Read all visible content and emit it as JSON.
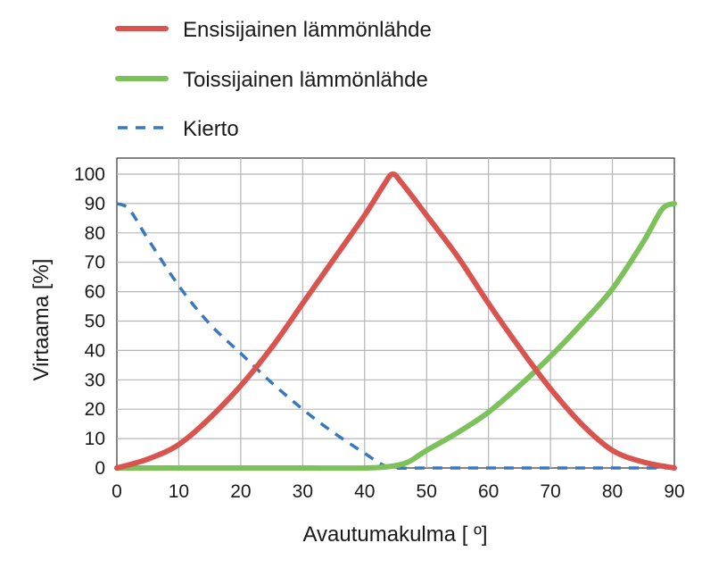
{
  "chart_data": {
    "type": "line",
    "xlabel": "Avautumakulma [ º]",
    "ylabel": "Virtaama [%]",
    "xlim": [
      0,
      90
    ],
    "ylim": [
      0,
      100
    ],
    "x_ticks": [
      0,
      10,
      20,
      30,
      40,
      50,
      60,
      70,
      80,
      90
    ],
    "y_ticks": [
      0,
      10,
      20,
      30,
      40,
      50,
      60,
      70,
      80,
      90,
      100
    ],
    "grid": true,
    "legend_position": "top",
    "series": [
      {
        "name": "Ensisijainen lämmönlähde",
        "color": "#d9534f",
        "style": "solid",
        "points": [
          [
            0,
            0
          ],
          [
            5,
            3
          ],
          [
            10,
            8
          ],
          [
            15,
            17
          ],
          [
            20,
            28
          ],
          [
            25,
            41
          ],
          [
            30,
            56
          ],
          [
            35,
            71
          ],
          [
            40,
            86
          ],
          [
            43,
            96
          ],
          [
            44.5,
            100
          ],
          [
            46,
            97
          ],
          [
            50,
            86
          ],
          [
            55,
            72
          ],
          [
            60,
            56
          ],
          [
            65,
            41
          ],
          [
            70,
            27
          ],
          [
            75,
            15
          ],
          [
            80,
            6
          ],
          [
            85,
            2
          ],
          [
            90,
            0
          ]
        ]
      },
      {
        "name": "Toissijainen lämmönlähde",
        "color": "#7dc15b",
        "style": "solid",
        "points": [
          [
            0,
            0
          ],
          [
            10,
            0
          ],
          [
            20,
            0
          ],
          [
            30,
            0
          ],
          [
            40,
            0
          ],
          [
            44,
            0.5
          ],
          [
            47,
            2
          ],
          [
            50,
            6
          ],
          [
            55,
            12
          ],
          [
            60,
            19
          ],
          [
            65,
            28
          ],
          [
            70,
            38
          ],
          [
            75,
            49
          ],
          [
            80,
            61
          ],
          [
            85,
            77
          ],
          [
            88,
            88
          ],
          [
            90,
            90
          ]
        ]
      },
      {
        "name": "Kierto",
        "color": "#3a78bd",
        "style": "dashed",
        "points": [
          [
            0,
            90
          ],
          [
            2,
            88
          ],
          [
            5,
            78
          ],
          [
            10,
            62
          ],
          [
            15,
            49
          ],
          [
            20,
            39
          ],
          [
            25,
            29
          ],
          [
            30,
            20
          ],
          [
            35,
            12
          ],
          [
            40,
            5
          ],
          [
            43,
            1
          ],
          [
            45,
            0
          ],
          [
            50,
            0
          ],
          [
            60,
            0
          ],
          [
            70,
            0
          ],
          [
            80,
            0
          ],
          [
            90,
            0
          ]
        ]
      }
    ]
  }
}
